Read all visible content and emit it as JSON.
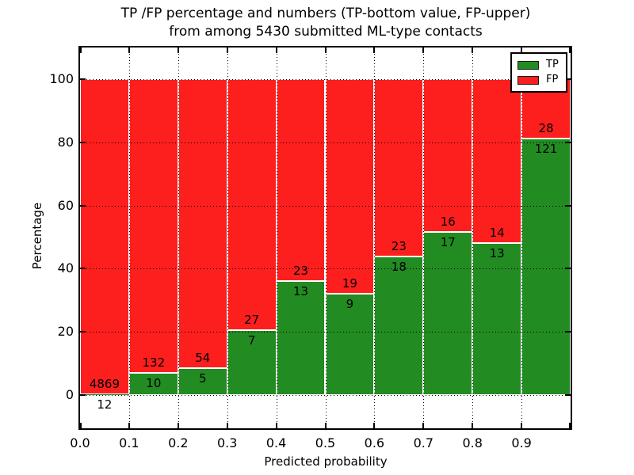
{
  "figure": {
    "title_line1": "TP /FP percentage and numbers (TP-bottom value, FP-upper)",
    "title_line2": "from among 5430 submitted ML-type contacts",
    "xlabel": "Predicted probability",
    "ylabel": "Percentage"
  },
  "chart_data": {
    "type": "bar",
    "stacked": true,
    "normalized": "each bar scaled to 100%, labels show raw counts",
    "title": "TP /FP percentage and numbers (TP-bottom value, FP-upper) from among 5430 submitted ML-type contacts",
    "xlabel": "Predicted probability",
    "ylabel": "Percentage",
    "total_contacts": 5430,
    "bin_width": 0.1,
    "x_bins": [
      0.0,
      0.1,
      0.2,
      0.3,
      0.4,
      0.5,
      0.6,
      0.7,
      0.8,
      0.9
    ],
    "x_tick_labels": [
      "0.0",
      "0.1",
      "0.2",
      "0.3",
      "0.4",
      "0.5",
      "0.6",
      "0.7",
      "0.8",
      "0.9"
    ],
    "y_ticks": [
      0,
      20,
      40,
      60,
      80,
      100
    ],
    "y_tick_labels": [
      "0",
      "20",
      "40",
      "60",
      "80",
      "100"
    ],
    "xlim": [
      0.0,
      1.0
    ],
    "ylim": [
      -10.3,
      110.3
    ],
    "grid": true,
    "grid_style": "dotted",
    "series": [
      {
        "name": "TP",
        "role": "bottom",
        "color": "#228b22",
        "values": [
          12,
          10,
          5,
          7,
          13,
          9,
          18,
          17,
          13,
          121
        ]
      },
      {
        "name": "FP",
        "role": "top",
        "color": "#fd1e1e",
        "values": [
          4869,
          132,
          54,
          27,
          23,
          19,
          23,
          16,
          14,
          28
        ]
      }
    ],
    "tp_percent_per_bin": [
      0.2,
      7.0,
      8.5,
      20.6,
      36.1,
      32.1,
      43.9,
      51.5,
      48.1,
      81.2
    ],
    "legend": {
      "position": "upper right",
      "entries": [
        {
          "label": "TP",
          "color": "#228b22"
        },
        {
          "label": "FP",
          "color": "#fd1e1e"
        }
      ]
    }
  }
}
